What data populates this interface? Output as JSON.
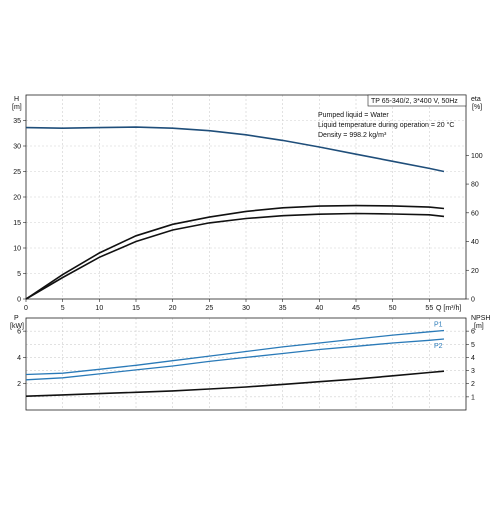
{
  "chart_data": [
    {
      "type": "line",
      "panel": "head-efficiency",
      "xlabel": "Q [m³/h]",
      "xlim": [
        0,
        60
      ],
      "x_ticks": [
        "0",
        "5",
        "10",
        "15",
        "20",
        "25",
        "30",
        "35",
        "40",
        "45",
        "50",
        "55"
      ],
      "y_left_label": "H",
      "y_left_unit": "[m]",
      "ylim_left": [
        0,
        40
      ],
      "y_left_ticks": [
        "0",
        "5",
        "10",
        "15",
        "20",
        "25",
        "30",
        "35"
      ],
      "y_right_label": "eta",
      "y_right_unit": "[%]",
      "ylim_right": [
        0,
        142
      ],
      "y_right_ticks": [
        "0",
        "20",
        "40",
        "60",
        "80",
        "100"
      ],
      "grid": true,
      "annotations": [
        "TP 65-340/2, 3*400 V, 50Hz",
        "Pumped liquid = Water",
        "Liquid temperature during operation = 20 °C",
        "Density = 998.2 kg/m³"
      ],
      "series": [
        {
          "color": "#1f4e7a",
          "axis": "left",
          "points": [
            [
              0,
              33.6
            ],
            [
              5,
              33.5
            ],
            [
              10,
              33.6
            ],
            [
              15,
              33.7
            ],
            [
              20,
              33.5
            ],
            [
              25,
              33.0
            ],
            [
              30,
              32.2
            ],
            [
              35,
              31.1
            ],
            [
              40,
              29.8
            ],
            [
              45,
              28.4
            ],
            [
              50,
              27.0
            ],
            [
              55,
              25.6
            ],
            [
              57,
              25.0
            ]
          ]
        },
        {
          "color": "#111111",
          "axis": "right",
          "points": [
            [
              0,
              0
            ],
            [
              5,
              17
            ],
            [
              10,
              32
            ],
            [
              15,
              44
            ],
            [
              20,
              52
            ],
            [
              25,
              57
            ],
            [
              30,
              61
            ],
            [
              35,
              63.5
            ],
            [
              40,
              64.7
            ],
            [
              45,
              65
            ],
            [
              50,
              64.8
            ],
            [
              55,
              64.0
            ],
            [
              57,
              63.0
            ]
          ]
        },
        {
          "color": "#111111",
          "axis": "right",
          "points": [
            [
              0,
              0
            ],
            [
              5,
              15
            ],
            [
              10,
              29
            ],
            [
              15,
              40
            ],
            [
              20,
              48
            ],
            [
              25,
              53
            ],
            [
              30,
              56
            ],
            [
              35,
              58
            ],
            [
              40,
              59
            ],
            [
              45,
              59.5
            ],
            [
              50,
              59.2
            ],
            [
              55,
              58.6
            ],
            [
              57,
              57.5
            ]
          ]
        }
      ]
    },
    {
      "type": "line",
      "panel": "power-npsh",
      "xlim": [
        0,
        60
      ],
      "y_left_label": "P",
      "y_left_unit": "[kW]",
      "ylim_left": [
        0,
        7
      ],
      "y_left_ticks": [
        "2",
        "4",
        "6"
      ],
      "y_right_label": "NPSH",
      "y_right_unit": "[m]",
      "ylim_right": [
        0,
        7
      ],
      "y_right_ticks": [
        "1",
        "2",
        "3",
        "4",
        "5",
        "6"
      ],
      "grid": true,
      "series": [
        {
          "name": "P1",
          "color": "#2a7ab8",
          "axis": "left",
          "points": [
            [
              0,
              2.7
            ],
            [
              5,
              2.8
            ],
            [
              10,
              3.1
            ],
            [
              15,
              3.4
            ],
            [
              20,
              3.75
            ],
            [
              25,
              4.1
            ],
            [
              30,
              4.45
            ],
            [
              35,
              4.8
            ],
            [
              40,
              5.1
            ],
            [
              45,
              5.4
            ],
            [
              50,
              5.7
            ],
            [
              55,
              5.95
            ],
            [
              57,
              6.05
            ]
          ]
        },
        {
          "name": "P2",
          "color": "#2a7ab8",
          "axis": "left",
          "points": [
            [
              0,
              2.3
            ],
            [
              5,
              2.45
            ],
            [
              10,
              2.75
            ],
            [
              15,
              3.05
            ],
            [
              20,
              3.35
            ],
            [
              25,
              3.7
            ],
            [
              30,
              4.0
            ],
            [
              35,
              4.3
            ],
            [
              40,
              4.6
            ],
            [
              45,
              4.85
            ],
            [
              50,
              5.1
            ],
            [
              55,
              5.3
            ],
            [
              57,
              5.4
            ]
          ]
        },
        {
          "color": "#111111",
          "axis": "right",
          "points": [
            [
              0,
              1.05
            ],
            [
              5,
              1.15
            ],
            [
              10,
              1.25
            ],
            [
              15,
              1.35
            ],
            [
              20,
              1.45
            ],
            [
              25,
              1.6
            ],
            [
              30,
              1.75
            ],
            [
              35,
              1.95
            ],
            [
              40,
              2.15
            ],
            [
              45,
              2.35
            ],
            [
              50,
              2.6
            ],
            [
              55,
              2.85
            ],
            [
              57,
              2.95
            ]
          ]
        }
      ]
    }
  ]
}
